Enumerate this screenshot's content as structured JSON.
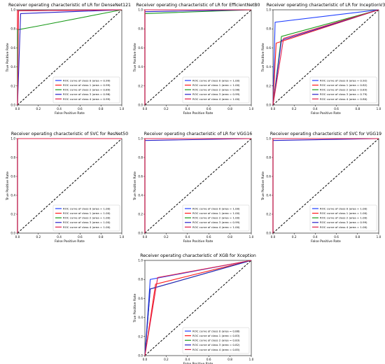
{
  "legend_template": "ROC curve of class {c} (area = {a})",
  "colors": [
    "#1f3fff",
    "#ff1a1a",
    "#1a9a1a",
    "#2a20c8",
    "#e0204a"
  ],
  "chart_data": [
    {
      "type": "line",
      "title": "Receiver operating characteristic of LR for DenseNet121",
      "xlabel": "False Positive Rate",
      "ylabel": "True Positive Rate",
      "xlim": [
        0,
        1
      ],
      "ylim": [
        0,
        1
      ],
      "xticks": [
        "0.0",
        "0.2",
        "0.4",
        "0.6",
        "0.8",
        "1.0"
      ],
      "yticks": [
        "0.0",
        "0.2",
        "0.4",
        "0.6",
        "0.8",
        "1.0"
      ],
      "legend_position": "lower-right",
      "grid": false,
      "series": [
        {
          "name": "ROC curve of class 0 (area = 0.99)",
          "points": [
            [
              0,
              0
            ],
            [
              0,
              0.99
            ],
            [
              1,
              1
            ]
          ]
        },
        {
          "name": "ROC curve of class 1 (area = 0.99)",
          "points": [
            [
              0,
              0
            ],
            [
              0,
              0.99
            ],
            [
              1,
              1
            ]
          ]
        },
        {
          "name": "ROC curve of class 2 (area = 0.89)",
          "points": [
            [
              0,
              0
            ],
            [
              0,
              0.79
            ],
            [
              0.2,
              0.83
            ],
            [
              1,
              1
            ]
          ]
        },
        {
          "name": "ROC curve of class 3 (area = 0.96)",
          "points": [
            [
              0,
              0
            ],
            [
              0.03,
              0.96
            ],
            [
              1,
              1
            ]
          ]
        },
        {
          "name": "ROC curve of class 4 (area = 0.99)",
          "points": [
            [
              0,
              0
            ],
            [
              0.01,
              0.99
            ],
            [
              1,
              1
            ]
          ]
        }
      ]
    },
    {
      "type": "line",
      "title": "Receiver operating characteristic of LR for EfficientNetB0",
      "xlabel": "False Positive Rate",
      "ylabel": "True Positive Rate",
      "xlim": [
        0,
        1
      ],
      "ylim": [
        0,
        1
      ],
      "xticks": [
        "0.0",
        "0.2",
        "0.4",
        "0.6",
        "0.8",
        "1.0"
      ],
      "yticks": [
        "0.0",
        "0.2",
        "0.4",
        "0.6",
        "0.8",
        "1.0"
      ],
      "legend_position": "lower-right",
      "grid": false,
      "series": [
        {
          "name": "ROC curve of class 0 (area = 1.00)",
          "points": [
            [
              0,
              0
            ],
            [
              0,
              1
            ],
            [
              1,
              1
            ]
          ]
        },
        {
          "name": "ROC curve of class 1 (area = 1.00)",
          "points": [
            [
              0,
              0
            ],
            [
              0,
              1
            ],
            [
              1,
              1
            ]
          ]
        },
        {
          "name": "ROC curve of class 2 (area = 0.98)",
          "points": [
            [
              0,
              0
            ],
            [
              0,
              0.96
            ],
            [
              1,
              1
            ]
          ]
        },
        {
          "name": "ROC curve of class 3 (area = 0.99)",
          "points": [
            [
              0,
              0
            ],
            [
              0,
              0.98
            ],
            [
              1,
              1
            ]
          ]
        },
        {
          "name": "ROC curve of class 4 (area = 1.00)",
          "points": [
            [
              0,
              0
            ],
            [
              0,
              1
            ],
            [
              1,
              1
            ]
          ]
        }
      ]
    },
    {
      "type": "line",
      "title": "Receiver operating characteristic of LR for InceptionV3",
      "xlabel": "False Positive Rate",
      "ylabel": "True Positive Rate",
      "xlim": [
        0,
        1
      ],
      "ylim": [
        0,
        1
      ],
      "xticks": [
        "0.0",
        "0.2",
        "0.4",
        "0.6",
        "0.8",
        "1.0"
      ],
      "yticks": [
        "0.0",
        "0.2",
        "0.4",
        "0.6",
        "0.8",
        "1.0"
      ],
      "legend_position": "lower-right",
      "grid": false,
      "series": [
        {
          "name": "ROC curve of class 0 (area = 0.92)",
          "points": [
            [
              0,
              0
            ],
            [
              0.02,
              0.87
            ],
            [
              1,
              1
            ]
          ]
        },
        {
          "name": "ROC curve of class 1 (area = 0.82)",
          "points": [
            [
              0,
              0
            ],
            [
              0.03,
              0.65
            ],
            [
              1,
              1
            ]
          ]
        },
        {
          "name": "ROC curve of class 2 (area = 0.83)",
          "points": [
            [
              0,
              0
            ],
            [
              0.08,
              0.72
            ],
            [
              1,
              1
            ]
          ]
        },
        {
          "name": "ROC curve of class 3 (area = 0.79)",
          "points": [
            [
              0,
              0
            ],
            [
              0.08,
              0.68
            ],
            [
              1,
              1
            ]
          ]
        },
        {
          "name": "ROC curve of class 4 (area = 0.80)",
          "points": [
            [
              0,
              0
            ],
            [
              0.1,
              0.7
            ],
            [
              1,
              1
            ]
          ]
        }
      ]
    },
    {
      "type": "line",
      "title": "Receiver operating characteristic of SVC for ResNet50",
      "xlabel": "False Positive Rate",
      "ylabel": "True Positive Rate",
      "xlim": [
        0,
        1
      ],
      "ylim": [
        0,
        1
      ],
      "xticks": [
        "0.0",
        "0.2",
        "0.4",
        "0.6",
        "0.8",
        "1.0"
      ],
      "yticks": [
        "0.0",
        "0.2",
        "0.4",
        "0.6",
        "0.8",
        "1.0"
      ],
      "legend_position": "lower-right",
      "grid": false,
      "series": [
        {
          "name": "ROC curve of class 0 (area = 1.00)",
          "points": [
            [
              0,
              0
            ],
            [
              0,
              1
            ],
            [
              1,
              1
            ]
          ]
        },
        {
          "name": "ROC curve of class 1 (area = 1.00)",
          "points": [
            [
              0,
              0
            ],
            [
              0,
              1
            ],
            [
              1,
              1
            ]
          ]
        },
        {
          "name": "ROC curve of class 2 (area = 1.00)",
          "points": [
            [
              0,
              0
            ],
            [
              0,
              1
            ],
            [
              1,
              1
            ]
          ]
        },
        {
          "name": "ROC curve of class 3 (area = 1.00)",
          "points": [
            [
              0,
              0
            ],
            [
              0,
              1
            ],
            [
              1,
              1
            ]
          ]
        },
        {
          "name": "ROC curve of class 4 (area = 1.00)",
          "points": [
            [
              0,
              0
            ],
            [
              0,
              1
            ],
            [
              1,
              1
            ]
          ]
        }
      ]
    },
    {
      "type": "line",
      "title": "Receiver operating characteristic of LR for VGG16",
      "xlabel": "False Positive Rate",
      "ylabel": "True Positive Rate",
      "xlim": [
        0,
        1
      ],
      "ylim": [
        0,
        1
      ],
      "xticks": [
        "0.0",
        "0.2",
        "0.4",
        "0.6",
        "0.8",
        "1.0"
      ],
      "yticks": [
        "0.0",
        "0.2",
        "0.4",
        "0.6",
        "0.8",
        "1.0"
      ],
      "legend_position": "lower-right",
      "grid": false,
      "series": [
        {
          "name": "ROC curve of class 0 (area = 1.00)",
          "points": [
            [
              0,
              0
            ],
            [
              0,
              1
            ],
            [
              1,
              1
            ]
          ]
        },
        {
          "name": "ROC curve of class 1 (area = 1.00)",
          "points": [
            [
              0,
              0
            ],
            [
              0,
              1
            ],
            [
              1,
              1
            ]
          ]
        },
        {
          "name": "ROC curve of class 2 (area = 1.00)",
          "points": [
            [
              0,
              0
            ],
            [
              0,
              1
            ],
            [
              1,
              1
            ]
          ]
        },
        {
          "name": "ROC curve of class 3 (area = 0.99)",
          "points": [
            [
              0,
              0
            ],
            [
              0,
              0.98
            ],
            [
              1,
              1
            ]
          ]
        },
        {
          "name": "ROC curve of class 4 (area = 1.00)",
          "points": [
            [
              0,
              0
            ],
            [
              0,
              1
            ],
            [
              1,
              1
            ]
          ]
        }
      ]
    },
    {
      "type": "line",
      "title": "Receiver operating characteristic of SVC for VGG19",
      "xlabel": "False Positive Rate",
      "ylabel": "True Positive Rate",
      "xlim": [
        0,
        1
      ],
      "ylim": [
        0,
        1
      ],
      "xticks": [
        "0.0",
        "0.2",
        "0.4",
        "0.6",
        "0.8",
        "1.0"
      ],
      "yticks": [
        "0.0",
        "0.2",
        "0.4",
        "0.6",
        "0.8",
        "1.0"
      ],
      "legend_position": "lower-right",
      "grid": false,
      "series": [
        {
          "name": "ROC curve of class 0 (area = 1.00)",
          "points": [
            [
              0,
              0
            ],
            [
              0,
              1
            ],
            [
              1,
              1
            ]
          ]
        },
        {
          "name": "ROC curve of class 1 (area = 1.00)",
          "points": [
            [
              0,
              0
            ],
            [
              0,
              1
            ],
            [
              1,
              1
            ]
          ]
        },
        {
          "name": "ROC curve of class 2 (area = 1.00)",
          "points": [
            [
              0,
              0
            ],
            [
              0,
              1
            ],
            [
              1,
              1
            ]
          ]
        },
        {
          "name": "ROC curve of class 3 (area = 0.99)",
          "points": [
            [
              0,
              0
            ],
            [
              0,
              0.98
            ],
            [
              1,
              1
            ]
          ]
        },
        {
          "name": "ROC curve of class 4 (area = 1.00)",
          "points": [
            [
              0,
              0
            ],
            [
              0,
              1
            ],
            [
              1,
              1
            ]
          ]
        }
      ]
    },
    {
      "type": "line",
      "title": "Receiver operating characteristic of XGB for Xception",
      "xlabel": "False Positive Rate",
      "ylabel": "True Positive Rate",
      "xlim": [
        0,
        1
      ],
      "ylim": [
        0,
        1
      ],
      "xticks": [
        "0.0",
        "0.2",
        "0.4",
        "0.6",
        "0.8",
        "1.0"
      ],
      "yticks": [
        "0.0",
        "0.2",
        "0.4",
        "0.6",
        "0.8",
        "1.0"
      ],
      "legend_position": "lower-right",
      "grid": false,
      "series": [
        {
          "name": "ROC curve of class 0 (area = 0.88)",
          "points": [
            [
              0,
              0
            ],
            [
              0.05,
              0.8
            ],
            [
              1,
              1
            ]
          ]
        },
        {
          "name": "ROC curve of class 1 (area = 0.83)",
          "points": [
            [
              0,
              0
            ],
            [
              0.1,
              0.75
            ],
            [
              1,
              1
            ]
          ]
        },
        {
          "name": "ROC curve of class 2 (area = 0.83)",
          "points": [
            [
              0,
              0
            ],
            [
              0.05,
              0.7
            ],
            [
              1,
              1
            ]
          ]
        },
        {
          "name": "ROC curve of class 3 (area = 0.82)",
          "points": [
            [
              0,
              0
            ],
            [
              0.05,
              0.7
            ],
            [
              1,
              1
            ]
          ]
        },
        {
          "name": "ROC curve of class 4 (area = 0.85)",
          "points": [
            [
              0,
              0
            ],
            [
              0.12,
              0.82
            ],
            [
              1,
              1
            ]
          ]
        }
      ]
    }
  ]
}
